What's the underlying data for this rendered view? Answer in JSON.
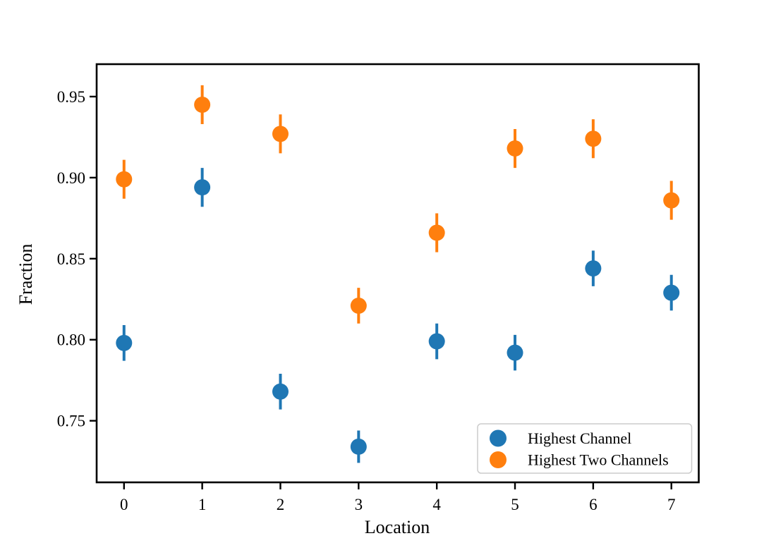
{
  "figure": {
    "background": "#ffffff"
  },
  "chart_data": {
    "type": "scatter",
    "title": "",
    "xlabel": "Location",
    "ylabel": "Fraction",
    "x": [
      0,
      1,
      2,
      3,
      4,
      5,
      6,
      7
    ],
    "series": [
      {
        "name": "Highest Channel",
        "color": "#1f77b4",
        "values": [
          0.798,
          0.894,
          0.768,
          0.734,
          0.799,
          0.792,
          0.844,
          0.829
        ],
        "errors": [
          0.011,
          0.012,
          0.011,
          0.01,
          0.011,
          0.011,
          0.011,
          0.011
        ]
      },
      {
        "name": "Highest Two Channels",
        "color": "#ff7f0e",
        "values": [
          0.899,
          0.945,
          0.927,
          0.821,
          0.866,
          0.918,
          0.924,
          0.886
        ],
        "errors": [
          0.012,
          0.012,
          0.012,
          0.011,
          0.012,
          0.012,
          0.012,
          0.012
        ]
      }
    ],
    "xlim": [
      -0.35,
      7.35
    ],
    "ylim": [
      0.712,
      0.97
    ],
    "xticks": {
      "values": [
        0,
        1,
        2,
        3,
        4,
        5,
        6,
        7
      ],
      "labels": [
        "0",
        "1",
        "2",
        "3",
        "4",
        "5",
        "6",
        "7"
      ]
    },
    "yticks": {
      "values": [
        0.75,
        0.8,
        0.85,
        0.9,
        0.95
      ],
      "labels": [
        "0.75",
        "0.80",
        "0.85",
        "0.90",
        "0.95"
      ]
    },
    "grid": false,
    "error_bars": true,
    "marker": "circle",
    "legend": {
      "position": "lower right"
    }
  },
  "style": {
    "axis_color": "#000000",
    "text_color": "#000000",
    "legend_border_color": "#cccccc",
    "legend_background": "#ffffff"
  }
}
